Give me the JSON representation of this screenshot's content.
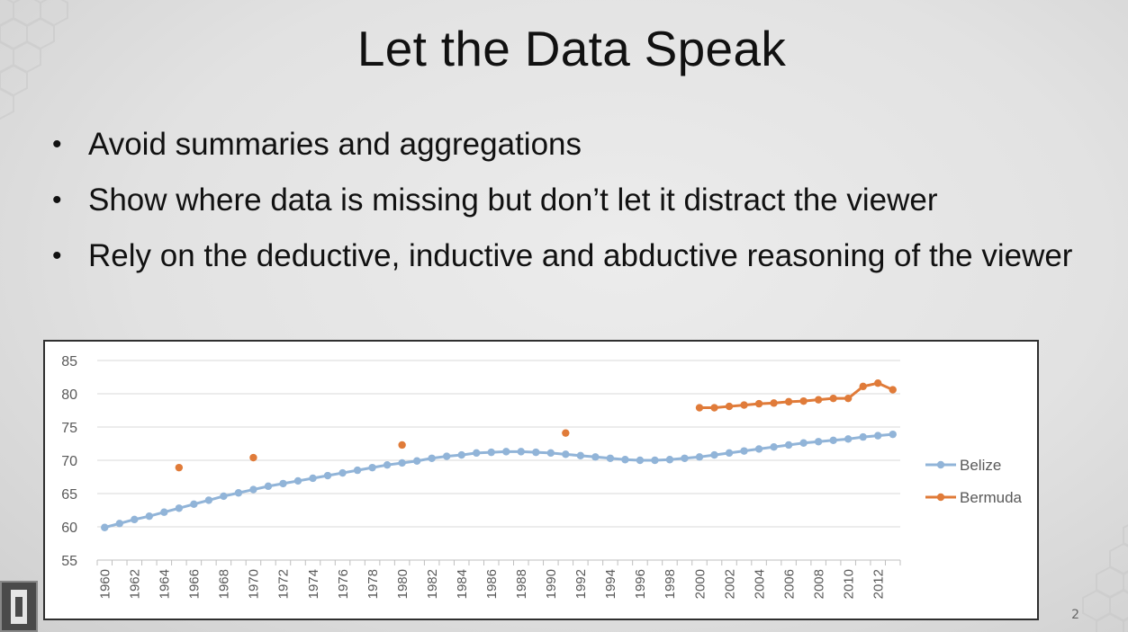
{
  "slide": {
    "title": "Let the Data Speak",
    "bullets": [
      "Avoid summaries and aggregations",
      "Show where data is missing but don’t let it distract the viewer",
      "Rely on the deductive, inductive and abductive reasoning of the viewer"
    ],
    "bullet_symbol": "•",
    "slide_number": "2"
  },
  "chart_data": {
    "type": "line",
    "title": "",
    "xlabel": "",
    "ylabel": "",
    "ylim": [
      55,
      85
    ],
    "yticks": [
      55,
      60,
      65,
      70,
      75,
      80,
      85
    ],
    "xlim": [
      1960,
      2013
    ],
    "xtick_step": 2,
    "grid": true,
    "legend_position": "right",
    "series": [
      {
        "name": "Belize",
        "color": "#91b4d8",
        "x": [
          1960,
          1961,
          1962,
          1963,
          1964,
          1965,
          1966,
          1967,
          1968,
          1969,
          1970,
          1971,
          1972,
          1973,
          1974,
          1975,
          1976,
          1977,
          1978,
          1979,
          1980,
          1981,
          1982,
          1983,
          1984,
          1985,
          1986,
          1987,
          1988,
          1989,
          1990,
          1991,
          1992,
          1993,
          1994,
          1995,
          1996,
          1997,
          1998,
          1999,
          2000,
          2001,
          2002,
          2003,
          2004,
          2005,
          2006,
          2007,
          2008,
          2009,
          2010,
          2011,
          2012,
          2013
        ],
        "values": [
          59.9,
          60.5,
          61.1,
          61.6,
          62.2,
          62.8,
          63.4,
          64.0,
          64.6,
          65.1,
          65.6,
          66.1,
          66.5,
          66.9,
          67.3,
          67.7,
          68.1,
          68.5,
          68.9,
          69.3,
          69.6,
          69.9,
          70.3,
          70.6,
          70.8,
          71.1,
          71.2,
          71.3,
          71.3,
          71.2,
          71.1,
          70.9,
          70.7,
          70.5,
          70.3,
          70.1,
          70.0,
          70.0,
          70.1,
          70.3,
          70.5,
          70.8,
          71.1,
          71.4,
          71.7,
          72.0,
          72.3,
          72.6,
          72.8,
          73.0,
          73.2,
          73.5,
          73.7,
          73.9
        ]
      },
      {
        "name": "Bermuda",
        "color": "#e07b39",
        "x": [
          1965,
          1970,
          1980,
          1991,
          2000,
          2001,
          2002,
          2003,
          2004,
          2005,
          2006,
          2007,
          2008,
          2009,
          2010,
          2011,
          2012,
          2013
        ],
        "values": [
          68.9,
          70.4,
          72.3,
          74.1,
          77.9,
          77.9,
          78.1,
          78.3,
          78.5,
          78.6,
          78.8,
          78.9,
          79.1,
          79.3,
          79.3,
          81.1,
          81.6,
          80.6
        ]
      }
    ]
  }
}
